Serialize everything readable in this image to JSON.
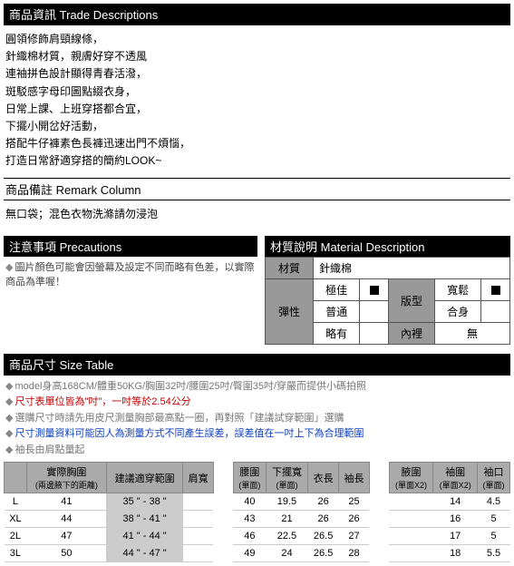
{
  "trade": {
    "header": "商品資訊 Trade Descriptions",
    "lines": [
      "圓領修飾肩頸線條，",
      "針織棉材質，親膚好穿不透風",
      "連袖拼色設計顯得青春活潑，",
      "斑駁感字母印圖點綴衣身，",
      "日常上課、上班穿搭都合宜，",
      "下擺小開岔好活動，",
      "搭配牛仔褲素色長褲迅速出門不煩惱，",
      "打造日常舒適穿搭的簡約LOOK~"
    ]
  },
  "remark": {
    "header": "商品備註 Remark Column",
    "body": "無口袋；混色衣物洗滌請勿浸泡"
  },
  "precautions": {
    "header": "注意事項 Precautions",
    "lines": [
      "圖片顏色可能會因螢幕及設定不同而略有色差，以實際商品為準喔！"
    ]
  },
  "material": {
    "header": "材質說明 Material Description",
    "label_material": "材質",
    "value_material": "針織棉",
    "label_elastic": "彈性",
    "elastic_best": "極佳",
    "elastic_normal": "普通",
    "elastic_slight": "略有",
    "label_ver": "版型",
    "ver_loose": "寬鬆",
    "ver_fit": "合身",
    "label_inner": "內裡",
    "inner_none": "無"
  },
  "sizetable": {
    "header": "商品尺寸 Size Table",
    "notes": {
      "model": "model身高168CM/體重50KG/胸圍32吋/腰圍25吋/臀圍35吋/穿嚴而提供小碼拍照",
      "unit": "尺寸表單位皆為\"吋\"，一吋等於2.54公分",
      "howto": "選購尺寸時請先用皮尺測量胸部最高點一圈，再對照「建議試穿範圍」選購",
      "error": "尺寸測量資料可能因人為測量方式不同產生誤差，誤差值在一吋上下為合理範圍",
      "sleeve": "袖長由肩點量起"
    },
    "columns": {
      "empty": "",
      "bust": "實際胸圍",
      "bust_sub": "(兩邊腋下的距離)",
      "suggest": "建議適穿範圍",
      "shoulder": "肩寬",
      "waist": "腰圍",
      "waist_sub": "(單面)",
      "hem": "下擺寬",
      "hem_sub": "(單面)",
      "length": "衣長",
      "sleeve": "袖長",
      "armhole": "腋圍",
      "armhole_sub": "(單面X2)",
      "sleevew": "袖圍",
      "sleevew_sub": "(單面X2)",
      "cuff": "袖口",
      "cuff_sub": "(單面)"
    },
    "rows": [
      {
        "sz": "L",
        "bust": "41",
        "suggest": "35 \" - 38 \"",
        "shoulder": "",
        "waist": "40",
        "hem": "19.5",
        "length": "26",
        "sleeve": "25",
        "armhole": "",
        "sleevew": "14",
        "cuff": "4.5"
      },
      {
        "sz": "XL",
        "bust": "44",
        "suggest": "38 \" - 41 \"",
        "shoulder": "",
        "waist": "43",
        "hem": "21",
        "length": "26",
        "sleeve": "26",
        "armhole": "",
        "sleevew": "16",
        "cuff": "5"
      },
      {
        "sz": "2L",
        "bust": "47",
        "suggest": "41 \" - 44 \"",
        "shoulder": "",
        "waist": "46",
        "hem": "22.5",
        "length": "26.5",
        "sleeve": "27",
        "armhole": "",
        "sleevew": "17",
        "cuff": "5"
      },
      {
        "sz": "3L",
        "bust": "50",
        "suggest": "44 \" - 47 \"",
        "shoulder": "",
        "waist": "49",
        "hem": "24",
        "length": "26.5",
        "sleeve": "28",
        "armhole": "",
        "sleevew": "18",
        "cuff": "5.5"
      }
    ]
  }
}
